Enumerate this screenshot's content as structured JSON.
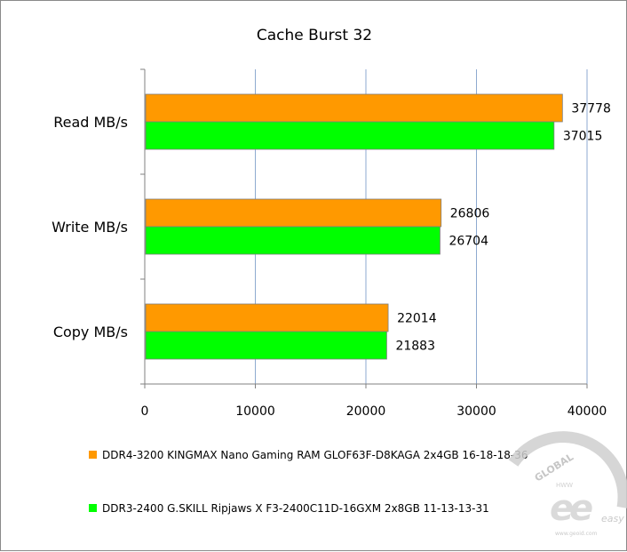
{
  "chart_data": {
    "type": "bar",
    "orientation": "horizontal",
    "title": "Cache Burst 32",
    "categories": [
      "Read MB/s",
      "Write MB/s",
      "Copy MB/s"
    ],
    "series": [
      {
        "name": "DDR4-3200 KINGMAX Nano Gaming RAM GLOF63F-D8KAGA 2x4GB 16-18-18-36",
        "color": "#ff9900",
        "values": [
          37778,
          26806,
          22014
        ]
      },
      {
        "name": "DDR3-2400 G.SKILL Ripjaws X F3-2400C11D-16GXM 2x8GB 11-13-13-31",
        "color": "#00ff00",
        "values": [
          37015,
          26704,
          21883
        ]
      }
    ],
    "xlim": [
      0,
      40000
    ],
    "xticks": [
      "0",
      "10000",
      "20000",
      "30000",
      "40000"
    ],
    "grid": true,
    "data_labels": true,
    "legend_position": "bottom"
  },
  "watermark": {
    "brand_top": "GLOBAL",
    "brand_small": "HWW",
    "brand_bottom": "easy",
    "site": "www.geoid.com",
    "icon": "ge-logo-icon"
  }
}
